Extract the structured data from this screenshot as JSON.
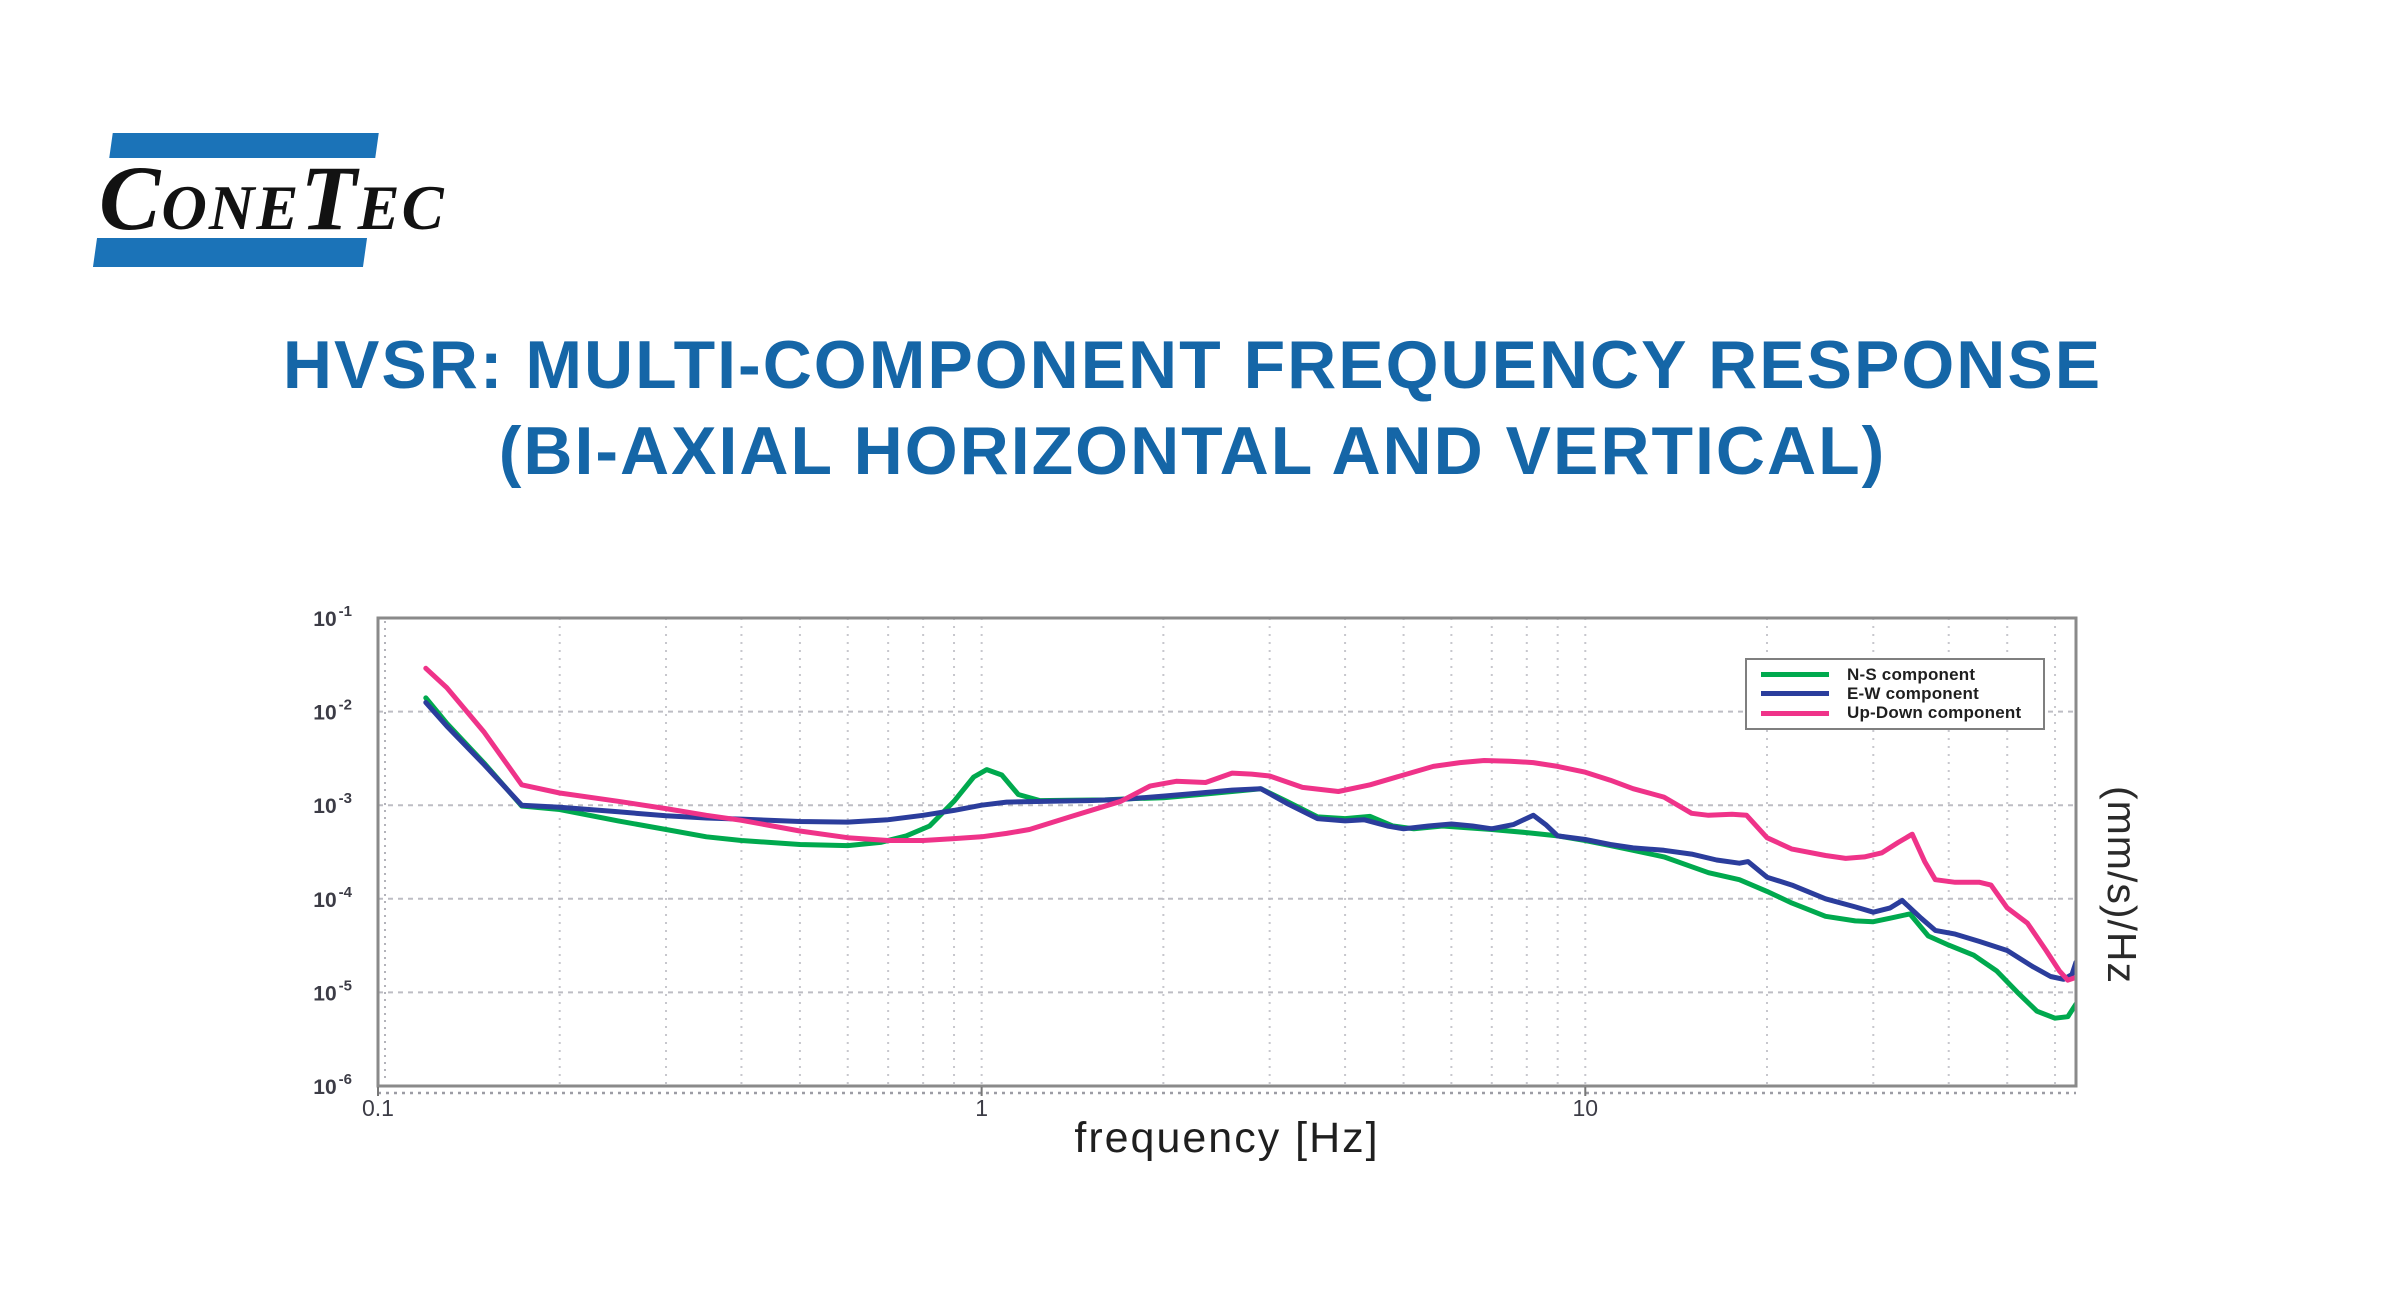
{
  "logo": {
    "text": "ConeTec",
    "part1": "C",
    "part2": "ONE",
    "part3": "T",
    "part4": "EC"
  },
  "title": {
    "line1": "HVSR: MULTI-COMPONENT FREQUENCY RESPONSE",
    "line2": "(BI-AXIAL HORIZONTAL AND VERTICAL)"
  },
  "colors": {
    "title_blue": "#1566A7",
    "logo_blue": "#1B73B8",
    "frame_gray": "#8A8A8A",
    "grid_minor": "#C7C7CD",
    "grid_major": "#BDBDC4"
  },
  "chart_data": {
    "type": "line",
    "x_scale": "log",
    "y_scale": "log",
    "xlabel": "frequency [Hz]",
    "ylabel_right": "(mm/s)/Hz",
    "xlim": [
      0.1,
      65
    ],
    "ylim": [
      1e-06,
      0.1
    ],
    "grid": true,
    "x_ticks": [
      {
        "f": 0.1,
        "label": "0.1"
      },
      {
        "f": 1,
        "label": "1"
      },
      {
        "f": 10,
        "label": "10"
      }
    ],
    "y_ticks": [
      {
        "v": 0.1,
        "base": "10",
        "exp": "-1"
      },
      {
        "v": 0.01,
        "base": "10",
        "exp": "-2"
      },
      {
        "v": 0.001,
        "base": "10",
        "exp": "-3"
      },
      {
        "v": 0.0001,
        "base": "10",
        "exp": "-4"
      },
      {
        "v": 1e-05,
        "base": "10",
        "exp": "-5"
      },
      {
        "v": 1e-06,
        "base": "10",
        "exp": "-6"
      }
    ],
    "legend": {
      "position": "top-right"
    },
    "series": [
      {
        "name": "N-S component",
        "color": "#00A94E",
        "points": [
          [
            0.12,
            0.014
          ],
          [
            0.13,
            0.0075
          ],
          [
            0.15,
            0.0028
          ],
          [
            0.173,
            0.00098
          ],
          [
            0.2,
            0.0009
          ],
          [
            0.25,
            0.00068
          ],
          [
            0.3,
            0.00055
          ],
          [
            0.35,
            0.00046
          ],
          [
            0.4,
            0.00042
          ],
          [
            0.5,
            0.00038
          ],
          [
            0.6,
            0.00037
          ],
          [
            0.68,
            0.0004
          ],
          [
            0.75,
            0.00047
          ],
          [
            0.82,
            0.0006
          ],
          [
            0.9,
            0.0011
          ],
          [
            0.97,
            0.002
          ],
          [
            1.02,
            0.0024
          ],
          [
            1.08,
            0.0021
          ],
          [
            1.15,
            0.0013
          ],
          [
            1.25,
            0.00112
          ],
          [
            1.4,
            0.00113
          ],
          [
            1.6,
            0.00114
          ],
          [
            1.8,
            0.00118
          ],
          [
            2.0,
            0.0012
          ],
          [
            2.3,
            0.0013
          ],
          [
            2.6,
            0.0014
          ],
          [
            2.9,
            0.0015
          ],
          [
            3.2,
            0.0011
          ],
          [
            3.6,
            0.00075
          ],
          [
            4.0,
            0.00072
          ],
          [
            4.4,
            0.00076
          ],
          [
            4.8,
            0.0006
          ],
          [
            5.2,
            0.00056
          ],
          [
            5.8,
            0.0006
          ],
          [
            6.5,
            0.00057
          ],
          [
            7.0,
            0.00055
          ],
          [
            8.0,
            0.00051
          ],
          [
            9.0,
            0.00047
          ],
          [
            10,
            0.00042
          ],
          [
            11,
            0.00037
          ],
          [
            12,
            0.00033
          ],
          [
            13.5,
            0.00028
          ],
          [
            15,
            0.00022
          ],
          [
            16,
            0.00019
          ],
          [
            18,
            0.00016
          ],
          [
            20,
            0.00012
          ],
          [
            22,
            9e-05
          ],
          [
            25,
            6.5e-05
          ],
          [
            28,
            5.8e-05
          ],
          [
            30,
            5.7e-05
          ],
          [
            32,
            6.2e-05
          ],
          [
            34.5,
            6.9e-05
          ],
          [
            37,
            4e-05
          ],
          [
            40,
            3.2e-05
          ],
          [
            44,
            2.5e-05
          ],
          [
            48,
            1.7e-05
          ],
          [
            52,
            1e-05
          ],
          [
            56,
            6.3e-06
          ],
          [
            60,
            5.3e-06
          ],
          [
            63,
            5.5e-06
          ],
          [
            65,
            7.5e-06
          ]
        ]
      },
      {
        "name": "E-W component",
        "color": "#2B3D9C",
        "points": [
          [
            0.12,
            0.0125
          ],
          [
            0.13,
            0.007
          ],
          [
            0.15,
            0.0027
          ],
          [
            0.173,
            0.001
          ],
          [
            0.2,
            0.00095
          ],
          [
            0.25,
            0.00085
          ],
          [
            0.3,
            0.00077
          ],
          [
            0.35,
            0.00073
          ],
          [
            0.4,
            0.00071
          ],
          [
            0.5,
            0.00067
          ],
          [
            0.6,
            0.00066
          ],
          [
            0.7,
            0.0007
          ],
          [
            0.8,
            0.00078
          ],
          [
            0.9,
            0.00088
          ],
          [
            1.0,
            0.001
          ],
          [
            1.1,
            0.00108
          ],
          [
            1.3,
            0.0011
          ],
          [
            1.5,
            0.00112
          ],
          [
            1.7,
            0.00115
          ],
          [
            2.0,
            0.00125
          ],
          [
            2.3,
            0.00135
          ],
          [
            2.6,
            0.00145
          ],
          [
            2.9,
            0.0015
          ],
          [
            3.2,
            0.00105
          ],
          [
            3.6,
            0.00072
          ],
          [
            4.0,
            0.00068
          ],
          [
            4.3,
            0.0007
          ],
          [
            4.7,
            0.0006
          ],
          [
            5.0,
            0.00056
          ],
          [
            5.5,
            0.0006
          ],
          [
            6.0,
            0.00063
          ],
          [
            6.5,
            0.0006
          ],
          [
            7.0,
            0.00056
          ],
          [
            7.6,
            0.00062
          ],
          [
            8.2,
            0.00078
          ],
          [
            8.6,
            0.00062
          ],
          [
            9.0,
            0.00047
          ],
          [
            10,
            0.00043
          ],
          [
            11,
            0.00038
          ],
          [
            12,
            0.00035
          ],
          [
            13.5,
            0.00033
          ],
          [
            15,
            0.0003
          ],
          [
            16.5,
            0.00026
          ],
          [
            18,
            0.00024
          ],
          [
            18.6,
            0.00025
          ],
          [
            20,
            0.00017
          ],
          [
            22,
            0.00014
          ],
          [
            25,
            0.0001
          ],
          [
            28,
            8.2e-05
          ],
          [
            30,
            7.2e-05
          ],
          [
            32,
            8e-05
          ],
          [
            33.5,
            9.6e-05
          ],
          [
            36,
            6.2e-05
          ],
          [
            38,
            4.6e-05
          ],
          [
            41,
            4.2e-05
          ],
          [
            45,
            3.5e-05
          ],
          [
            50,
            2.8e-05
          ],
          [
            55,
            1.9e-05
          ],
          [
            59,
            1.48e-05
          ],
          [
            62,
            1.38e-05
          ],
          [
            64,
            1.55e-05
          ],
          [
            65,
            2.1e-05
          ]
        ]
      },
      {
        "name": "Up-Down component",
        "color": "#EF3389",
        "points": [
          [
            0.12,
            0.029
          ],
          [
            0.13,
            0.018
          ],
          [
            0.15,
            0.006
          ],
          [
            0.173,
            0.00165
          ],
          [
            0.2,
            0.00135
          ],
          [
            0.25,
            0.0011
          ],
          [
            0.3,
            0.00092
          ],
          [
            0.35,
            0.00078
          ],
          [
            0.4,
            0.00069
          ],
          [
            0.5,
            0.00053
          ],
          [
            0.6,
            0.00045
          ],
          [
            0.7,
            0.00042
          ],
          [
            0.8,
            0.00042
          ],
          [
            0.9,
            0.00044
          ],
          [
            1.0,
            0.00046
          ],
          [
            1.1,
            0.0005
          ],
          [
            1.2,
            0.00055
          ],
          [
            1.4,
            0.00075
          ],
          [
            1.7,
            0.0011
          ],
          [
            1.9,
            0.0016
          ],
          [
            2.1,
            0.0018
          ],
          [
            2.35,
            0.00175
          ],
          [
            2.6,
            0.0022
          ],
          [
            2.8,
            0.00215
          ],
          [
            3.0,
            0.00205
          ],
          [
            3.4,
            0.00155
          ],
          [
            3.9,
            0.0014
          ],
          [
            4.4,
            0.00165
          ],
          [
            5.0,
            0.0021
          ],
          [
            5.6,
            0.0026
          ],
          [
            6.2,
            0.00285
          ],
          [
            6.8,
            0.003
          ],
          [
            7.5,
            0.00295
          ],
          [
            8.2,
            0.00285
          ],
          [
            9.0,
            0.0026
          ],
          [
            10,
            0.00225
          ],
          [
            11,
            0.00185
          ],
          [
            12,
            0.0015
          ],
          [
            13.5,
            0.00122
          ],
          [
            15,
            0.00082
          ],
          [
            16,
            0.00078
          ],
          [
            17.5,
            0.0008
          ],
          [
            18.5,
            0.00078
          ],
          [
            20,
            0.00045
          ],
          [
            22,
            0.00034
          ],
          [
            25,
            0.00029
          ],
          [
            27,
            0.00027
          ],
          [
            29,
            0.00028
          ],
          [
            31,
            0.00031
          ],
          [
            33,
            0.0004
          ],
          [
            34.8,
            0.00049
          ],
          [
            36.5,
            0.00025
          ],
          [
            38,
            0.00016
          ],
          [
            41,
            0.00015
          ],
          [
            45,
            0.00015
          ],
          [
            47,
            0.00014
          ],
          [
            50,
            8e-05
          ],
          [
            54,
            5.5e-05
          ],
          [
            58,
            2.8e-05
          ],
          [
            61,
            1.7e-05
          ],
          [
            63,
            1.35e-05
          ],
          [
            65,
            1.45e-05
          ]
        ]
      }
    ]
  }
}
